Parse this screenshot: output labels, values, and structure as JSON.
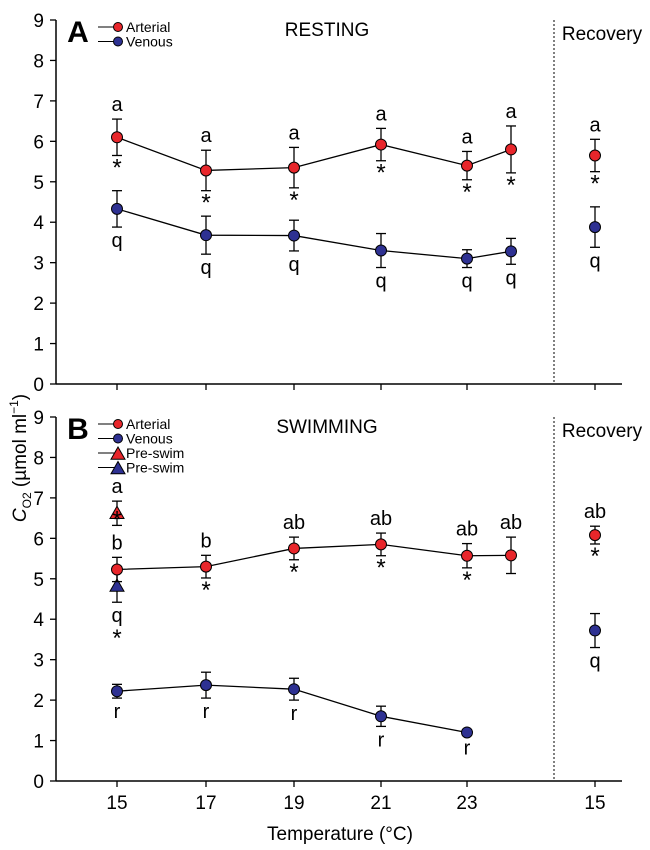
{
  "chart_data": {
    "type": "line",
    "y_axis": {
      "ylabel_main": "C",
      "ylabel_sub": "O2",
      "ylabel_units": " (µmol ml",
      "ylabel_sup": "−1",
      "ylabel_close": ")",
      "ylim": [
        0,
        9
      ],
      "ticks": [
        "0",
        "1",
        "2",
        "3",
        "4",
        "5",
        "6",
        "7",
        "8",
        "9"
      ]
    },
    "x_axis": {
      "xlabel": "Temperature (°C)",
      "temperature_ticks": [
        "15",
        "17",
        "19",
        "21",
        "23"
      ],
      "recovery_tick": "15"
    },
    "panels": [
      {
        "id": "A",
        "letter": "A",
        "title": "RESTING",
        "recovery_label": "Recovery",
        "legend": [
          {
            "label": "Arterial",
            "marker": "circle",
            "color": "#e8262b"
          },
          {
            "label": "Venous",
            "marker": "circle",
            "color": "#2e3192"
          }
        ],
        "series": [
          {
            "name": "Arterial",
            "color": "#e8262b",
            "x": [
              15,
              17,
              19,
              21,
              23,
              24
            ],
            "y": [
              6.1,
              5.28,
              5.35,
              5.92,
              5.4,
              5.8
            ],
            "err": [
              0.45,
              0.5,
              0.5,
              0.4,
              0.35,
              0.58
            ],
            "labels_above": [
              "a",
              "a",
              "a",
              "a",
              "a",
              "a"
            ],
            "stars_below": [
              "*",
              "*",
              "*",
              "*",
              "*",
              "*"
            ],
            "recovery": {
              "y": 5.65,
              "err": 0.4,
              "label_above": "a",
              "star_below": "*"
            }
          },
          {
            "name": "Venous",
            "color": "#2e3192",
            "x": [
              15,
              17,
              19,
              21,
              23,
              24
            ],
            "y": [
              4.33,
              3.68,
              3.67,
              3.3,
              3.1,
              3.28
            ],
            "err": [
              0.45,
              0.47,
              0.38,
              0.42,
              0.22,
              0.32
            ],
            "labels_below": [
              "q",
              "q",
              "q",
              "q",
              "q",
              "q"
            ],
            "recovery": {
              "y": 3.88,
              "err": 0.5,
              "label_below": "q"
            }
          }
        ]
      },
      {
        "id": "B",
        "letter": "B",
        "title": "SWIMMING",
        "recovery_label": "Recovery",
        "legend": [
          {
            "label": "Arterial",
            "marker": "circle",
            "color": "#e8262b"
          },
          {
            "label": "Venous",
            "marker": "circle",
            "color": "#2e3192"
          },
          {
            "label": "Pre-swim",
            "marker": "triangle",
            "color": "#e8262b"
          },
          {
            "label": "Pre-swim",
            "marker": "triangle",
            "color": "#2e3192"
          }
        ],
        "pre_swim": [
          {
            "name": "Pre-swim",
            "color": "#e8262b",
            "x": 15,
            "y": 6.62,
            "err": 0.3,
            "label_above": "a",
            "star_below": "*"
          },
          {
            "name": "Pre-swim",
            "color": "#2e3192",
            "x": 15,
            "y": 4.82,
            "err": 0.4,
            "label_below": "q",
            "star_below": "*"
          }
        ],
        "series": [
          {
            "name": "Arterial",
            "color": "#e8262b",
            "x": [
              15,
              17,
              19,
              21,
              23,
              24
            ],
            "y": [
              5.23,
              5.3,
              5.75,
              5.85,
              5.57,
              5.58
            ],
            "err": [
              0.3,
              0.28,
              0.28,
              0.28,
              0.3,
              0.45
            ],
            "labels_above": [
              "b",
              "b",
              "ab",
              "ab",
              "ab",
              "ab"
            ],
            "stars_below": [
              "",
              "*",
              "*",
              "*",
              "*",
              ""
            ],
            "recovery": {
              "y": 6.08,
              "err": 0.22,
              "label_above": "ab",
              "star_below": "*"
            }
          },
          {
            "name": "Venous",
            "color": "#2e3192",
            "x": [
              15,
              17,
              19,
              21,
              23
            ],
            "y": [
              2.22,
              2.37,
              2.27,
              1.6,
              1.2
            ],
            "err": [
              0.17,
              0.32,
              0.27,
              0.25,
              0.05
            ],
            "labels_below": [
              "r",
              "r",
              "r",
              "r",
              "r"
            ],
            "recovery": {
              "y": 3.72,
              "err": 0.42,
              "label_below": "q"
            }
          }
        ]
      }
    ]
  }
}
